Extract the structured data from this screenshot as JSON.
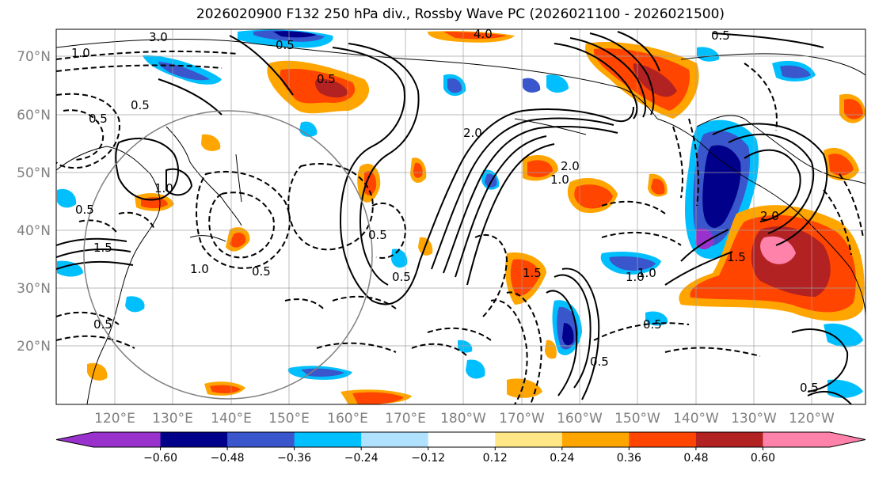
{
  "title": "2026020900 F132 250 hPa div., Rossby Wave PC (2026021100 - 2026021500)",
  "lat_labels": [
    "70°N",
    "60°N",
    "50°N",
    "40°N",
    "30°N",
    "20°N"
  ],
  "lon_labels": [
    "120°E",
    "130°E",
    "140°E",
    "150°E",
    "160°E",
    "170°E",
    "180°W",
    "170°W",
    "160°W",
    "150°W",
    "140°W",
    "130°W",
    "120°W"
  ],
  "colorbar": {
    "ticks": [
      "−0.60",
      "−0.48",
      "−0.36",
      "−0.24",
      "−0.12",
      "0.12",
      "0.24",
      "0.36",
      "0.48",
      "0.60"
    ],
    "colors": [
      "#9932cc",
      "#00008b",
      "#3a56cc",
      "#00bfff",
      "#b0e2ff",
      "#ffffff",
      "#ffe787",
      "#ffa500",
      "#ff4500",
      "#b22222",
      "#ff82ab"
    ]
  },
  "contour_labels": [
    "3.0",
    "0.5",
    "0.5",
    "4.0",
    "0.5",
    "1.0",
    "0.5",
    "0.5",
    "2.0",
    "2.0",
    "1.0",
    "1.0",
    "0.5",
    "1.5",
    "0.5",
    "0.5",
    "2.0",
    "1.5",
    "1.0",
    "0.5",
    "1.0",
    "0.5",
    "0.5",
    "0.5",
    "1.0",
    "0.5",
    "1.5"
  ]
}
